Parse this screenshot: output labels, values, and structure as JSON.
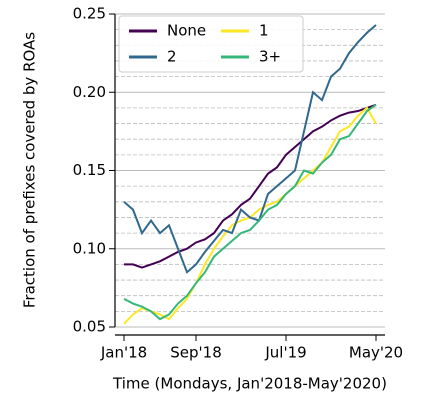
{
  "chart_data": {
    "type": "line",
    "y_label": "Fraction of prefixes covered by ROAs",
    "x_label": "Time (Mondays, Jan'2018-May'2020)",
    "x": [
      "2018-01",
      "2018-02",
      "2018-03",
      "2018-04",
      "2018-05",
      "2018-06",
      "2018-07",
      "2018-08",
      "2018-09",
      "2018-10",
      "2018-11",
      "2018-12",
      "2019-01",
      "2019-02",
      "2019-03",
      "2019-04",
      "2019-05",
      "2019-06",
      "2019-07",
      "2019-08",
      "2019-09",
      "2019-10",
      "2019-11",
      "2019-12",
      "2020-01",
      "2020-02",
      "2020-03",
      "2020-04",
      "2020-05"
    ],
    "series": [
      {
        "name": "None",
        "color": "#440154",
        "values": [
          0.09,
          0.09,
          0.088,
          0.09,
          0.092,
          0.095,
          0.098,
          0.1,
          0.104,
          0.106,
          0.11,
          0.118,
          0.122,
          0.128,
          0.132,
          0.14,
          0.148,
          0.152,
          0.16,
          0.165,
          0.17,
          0.175,
          0.178,
          0.182,
          0.185,
          0.187,
          0.188,
          0.19,
          0.192
        ]
      },
      {
        "name": "1",
        "color": "#fde725",
        "values": [
          0.052,
          0.058,
          0.062,
          0.06,
          0.058,
          0.055,
          0.062,
          0.068,
          0.078,
          0.09,
          0.1,
          0.108,
          0.115,
          0.118,
          0.12,
          0.125,
          0.128,
          0.13,
          0.135,
          0.14,
          0.145,
          0.15,
          0.155,
          0.165,
          0.175,
          0.178,
          0.185,
          0.19,
          0.18
        ]
      },
      {
        "name": "2",
        "color": "#31688e",
        "values": [
          0.13,
          0.125,
          0.11,
          0.118,
          0.11,
          0.115,
          0.1,
          0.085,
          0.09,
          0.098,
          0.105,
          0.112,
          0.11,
          0.125,
          0.12,
          0.118,
          0.135,
          0.14,
          0.145,
          0.15,
          0.175,
          0.2,
          0.195,
          0.21,
          0.215,
          0.225,
          0.232,
          0.238,
          0.243
        ]
      },
      {
        "name": "3+",
        "color": "#35b779",
        "values": [
          0.068,
          0.065,
          0.063,
          0.06,
          0.055,
          0.058,
          0.065,
          0.07,
          0.078,
          0.085,
          0.095,
          0.1,
          0.105,
          0.11,
          0.112,
          0.118,
          0.125,
          0.128,
          0.135,
          0.14,
          0.15,
          0.148,
          0.155,
          0.16,
          0.17,
          0.172,
          0.18,
          0.188,
          0.192
        ]
      }
    ],
    "xlim": [
      "2017-12",
      "2020-06"
    ],
    "xticks": [
      {
        "value": "2018-01",
        "label": "Jan'18"
      },
      {
        "value": "2018-09",
        "label": "Sep'18"
      },
      {
        "value": "2019-07",
        "label": "Jul'19"
      },
      {
        "value": "2020-05",
        "label": "May'20"
      }
    ],
    "ylim": [
      0.05,
      0.25
    ],
    "yticks": [
      0.05,
      {
        "value": 0.1,
        "label": "0.10"
      },
      0.15,
      {
        "value": 0.2,
        "label": "0.20"
      },
      0.25
    ],
    "minor_yticks": [
      0.06,
      0.07,
      0.08,
      0.09,
      0.11,
      0.12,
      0.13,
      0.14,
      0.16,
      0.17,
      0.18,
      0.19,
      0.21,
      0.22,
      0.23,
      0.24
    ],
    "grid": true,
    "legend": "upper left"
  }
}
